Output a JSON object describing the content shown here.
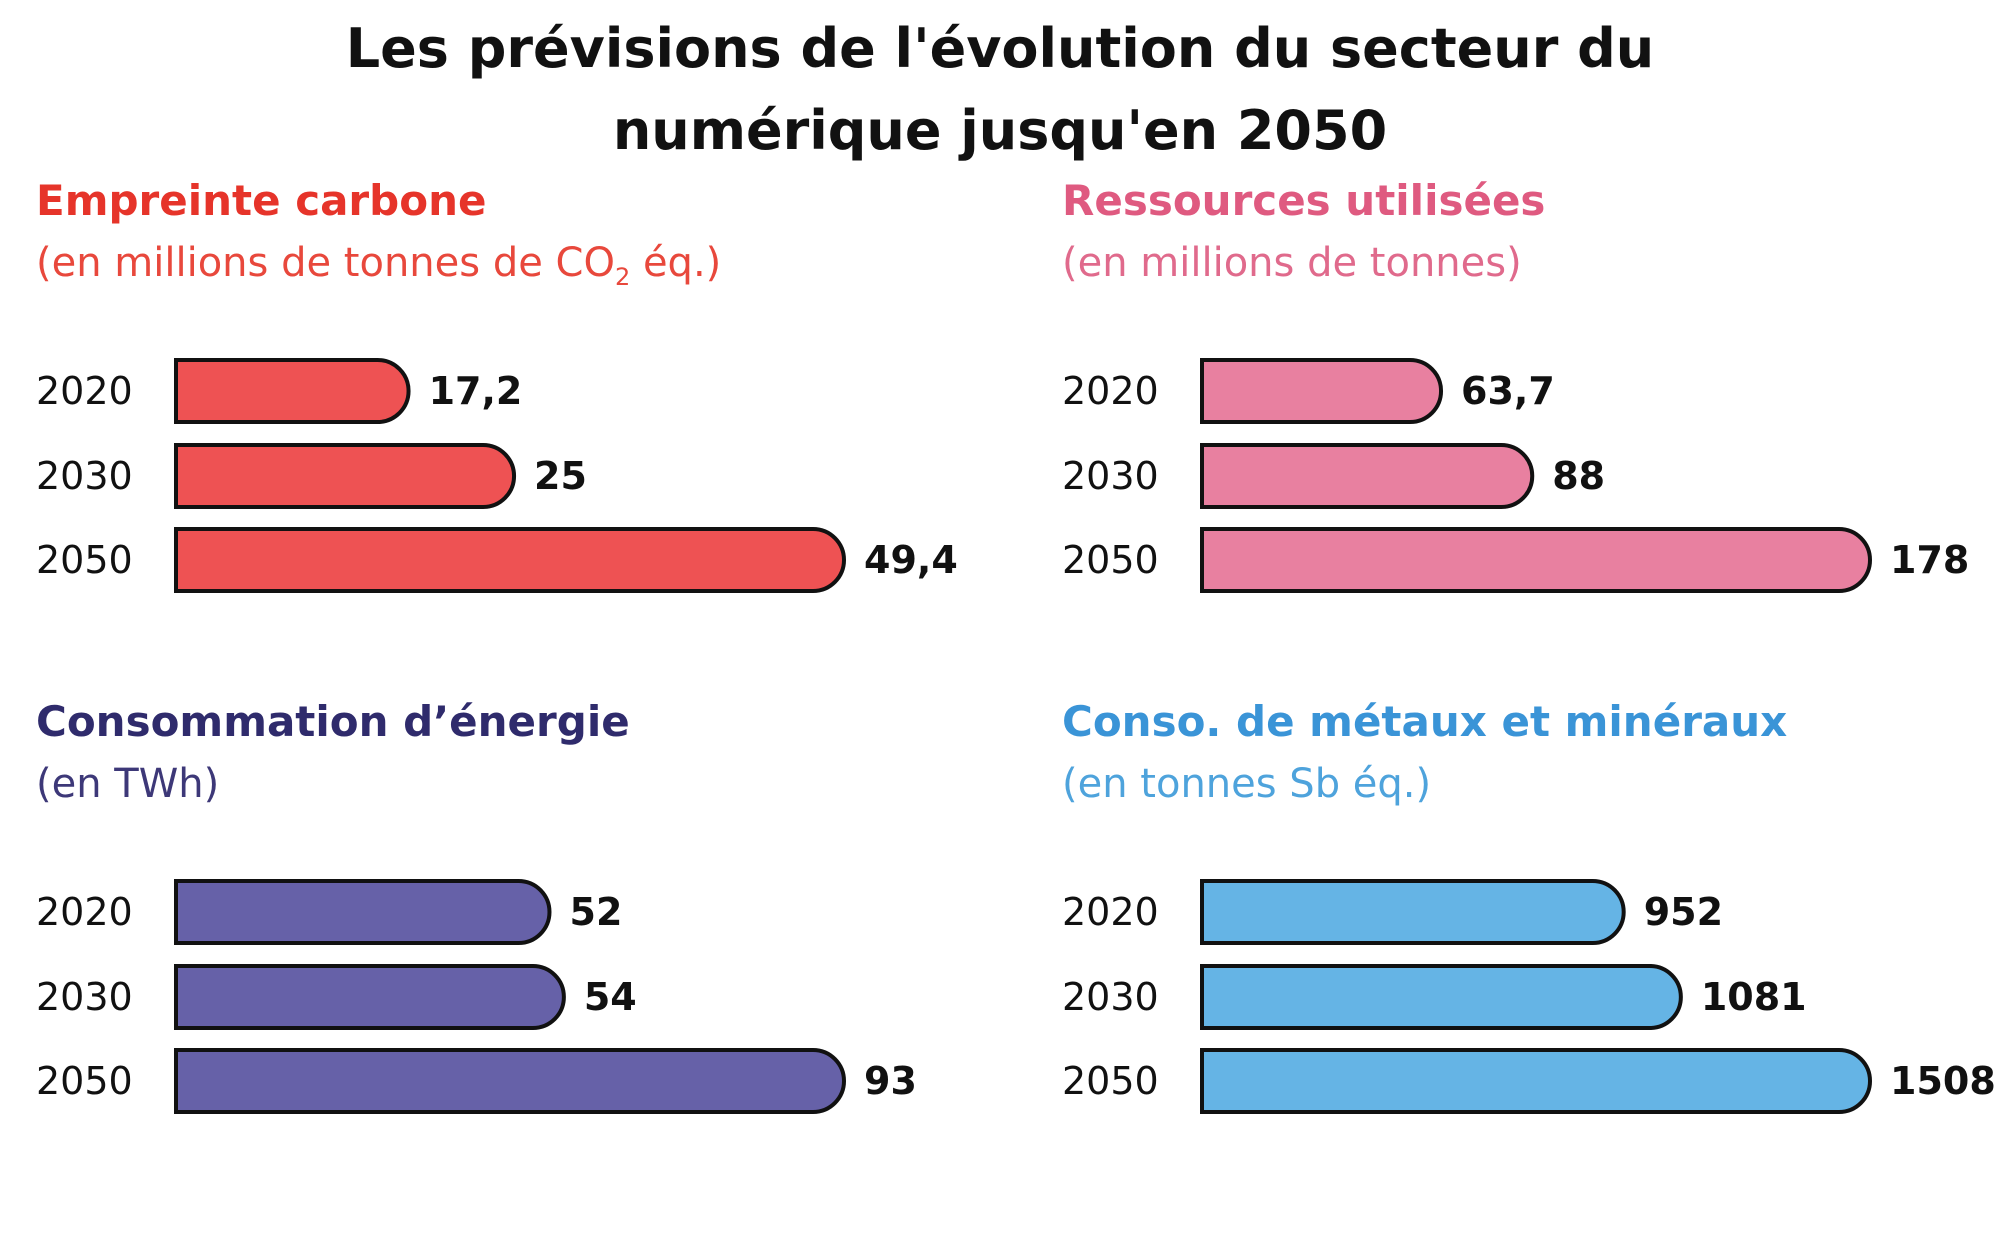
{
  "title_line1": "Les prévisions de l'évolution du secteur du",
  "title_line2": "numérique jusqu'en 2050",
  "chart_data": [
    {
      "type": "bar",
      "title": "Empreinte carbone",
      "subtitle_pre": "(en millions de tonnes de CO",
      "subtitle_sub": "2",
      "subtitle_post": " éq.)",
      "categories": [
        "2020",
        "2030",
        "2050"
      ],
      "values": [
        17.2,
        25,
        49.4
      ],
      "labels": [
        "17,2",
        "25",
        "49,4"
      ],
      "color": "#ee5253",
      "title_color": "#e6342a",
      "subtitle_color": "#e8483c"
    },
    {
      "type": "bar",
      "title": "Ressources utilisées",
      "subtitle_pre": "(en millions de tonnes)",
      "subtitle_sub": "",
      "subtitle_post": "",
      "categories": [
        "2020",
        "2030",
        "2050"
      ],
      "values": [
        63.7,
        88,
        178
      ],
      "labels": [
        "63,7",
        "88",
        "178"
      ],
      "color": "#e880a0",
      "title_color": "#df5a80",
      "subtitle_color": "#e06a8c"
    },
    {
      "type": "bar",
      "title": "Consommation d’énergie",
      "subtitle_pre": "(en TWh)",
      "subtitle_sub": "",
      "subtitle_post": "",
      "categories": [
        "2020",
        "2030",
        "2050"
      ],
      "values": [
        52,
        54,
        93
      ],
      "labels": [
        "52",
        "54",
        "93"
      ],
      "color": "#6661a8",
      "title_color": "#2f2b6c",
      "subtitle_color": "#3d3878"
    },
    {
      "type": "bar",
      "title": "Conso. de métaux et minéraux",
      "subtitle_pre": "(en tonnes Sb éq.)",
      "subtitle_sub": "",
      "subtitle_post": "",
      "categories": [
        "2020",
        "2030",
        "2050"
      ],
      "values": [
        952,
        1081,
        1508
      ],
      "labels": [
        "952",
        "1081",
        "1508"
      ],
      "color": "#65b4e5",
      "title_color": "#3a94d7",
      "subtitle_color": "#4ea3dc"
    }
  ]
}
